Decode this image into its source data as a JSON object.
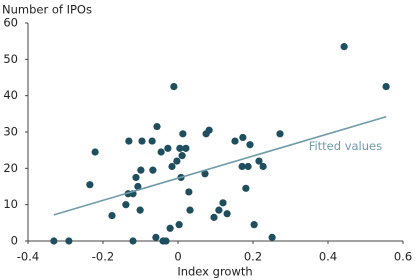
{
  "chart_data": {
    "type": "scatter",
    "y_label": "Number of IPOs",
    "x_label": "Index growth",
    "xlim": [
      -0.4,
      0.6
    ],
    "xticks": [
      -0.4,
      -0.2,
      0,
      0.2,
      0.4,
      0.6
    ],
    "ylim": [
      0,
      60
    ],
    "yticks": [
      0,
      10,
      20,
      30,
      40,
      50,
      60
    ],
    "grid": false,
    "series": [
      {
        "type": "scatter",
        "color": "#1f4e5f",
        "x": [
          -0.331,
          -0.291,
          -0.235,
          -0.221,
          -0.176,
          -0.139,
          -0.133,
          -0.131,
          -0.12,
          -0.12,
          -0.112,
          -0.107,
          -0.101,
          -0.099,
          -0.096,
          -0.069,
          -0.067,
          -0.059,
          -0.056,
          -0.045,
          -0.04,
          -0.032,
          -0.027,
          -0.021,
          -0.016,
          -0.011,
          -0.003,
          0.003,
          0.005,
          0.008,
          0.011,
          0.013,
          0.021,
          0.029,
          0.032,
          0.072,
          0.075,
          0.083,
          0.096,
          0.109,
          0.12,
          0.131,
          0.152,
          0.171,
          0.173,
          0.181,
          0.187,
          0.192,
          0.203,
          0.216,
          0.227,
          0.251,
          0.272,
          0.443,
          0.555
        ],
        "values": [
          0,
          0,
          15.5,
          24.5,
          7,
          10,
          13,
          27.5,
          0,
          13,
          17.5,
          15,
          8.5,
          19.5,
          27.5,
          27.5,
          19.5,
          1,
          31.5,
          24.5,
          0,
          0,
          25.5,
          3.5,
          20.5,
          42.5,
          22,
          4.5,
          25.5,
          17.5,
          23.5,
          29.5,
          25.5,
          13.5,
          8.5,
          18.5,
          29.5,
          30.5,
          6.5,
          8.5,
          10.5,
          7.5,
          27.5,
          20.5,
          28.5,
          14.5,
          20.5,
          26.5,
          4.5,
          22,
          20.5,
          1,
          29.5,
          53.5,
          42.5
        ]
      },
      {
        "type": "line",
        "name": "Fitted values",
        "color": "#6f9aa8",
        "x": [
          -0.331,
          0.555
        ],
        "values": [
          7.2,
          34.2
        ]
      }
    ]
  }
}
